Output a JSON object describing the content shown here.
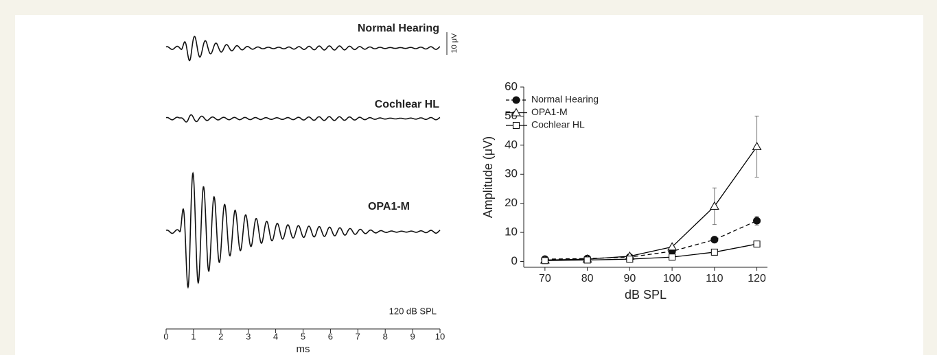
{
  "chart_data": [
    {
      "type": "waveform",
      "traces": [
        {
          "name": "Normal Hearing"
        },
        {
          "name": "Cochlear HL"
        },
        {
          "name": "OPA1-M"
        }
      ],
      "scale_bar": "10 μV",
      "annotation": "120 dB SPL",
      "xlabel": "ms",
      "xlim": [
        0,
        10
      ],
      "xticks": [
        0,
        1,
        2,
        3,
        4,
        5,
        6,
        7,
        8,
        9,
        10
      ]
    },
    {
      "type": "line",
      "xlabel": "dB SPL",
      "ylabel": "Amplitude (μV)",
      "x": [
        70,
        80,
        90,
        100,
        110,
        120
      ],
      "xlim": [
        65,
        122.5
      ],
      "xticks": [
        70,
        80,
        90,
        100,
        110,
        120
      ],
      "ylim": [
        -2,
        60
      ],
      "yticks": [
        0,
        10,
        20,
        30,
        40,
        50,
        60
      ],
      "legend": "upper left",
      "series": [
        {
          "name": "Normal Hearing",
          "color": "#000000",
          "marker": "circle",
          "dashed": true,
          "values": [
            0.8,
            1,
            1.5,
            3.5,
            7.5,
            14
          ],
          "errors": [
            null,
            null,
            null,
            null,
            null,
            1.5
          ]
        },
        {
          "name": "OPA1-M",
          "color": "#000000",
          "marker": "triangle",
          "dashed": false,
          "values": [
            0.5,
            0.8,
            1.8,
            5,
            19,
            39.5
          ],
          "errors": [
            null,
            null,
            null,
            null,
            6.3,
            10.5
          ]
        },
        {
          "name": "Cochlear HL",
          "color": "#000000",
          "marker": "square",
          "dashed": false,
          "values": [
            0.3,
            0.5,
            0.8,
            1.5,
            3.2,
            6
          ],
          "errors": [
            null,
            null,
            null,
            null,
            null,
            null
          ]
        }
      ]
    }
  ]
}
